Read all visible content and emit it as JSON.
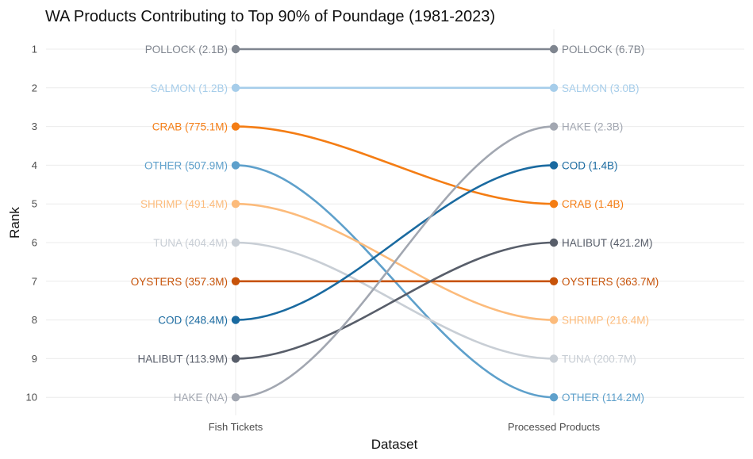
{
  "chart_data": {
    "type": "bump",
    "title": "WA Products Contributing to Top 90% of Poundage (1981-2023)",
    "xlabel": "Dataset",
    "ylabel": "Rank",
    "categories": [
      "Fish Tickets",
      "Processed Products"
    ],
    "ranks": [
      1,
      2,
      3,
      4,
      5,
      6,
      7,
      8,
      9,
      10
    ],
    "grid": true,
    "series": [
      {
        "name": "POLLOCK",
        "color": "#7f858f",
        "values": [
          1,
          1
        ],
        "labels": [
          "POLLOCK (2.1B)",
          "POLLOCK (6.7B)"
        ]
      },
      {
        "name": "SALMON",
        "color": "#a6cdea",
        "values": [
          2,
          2
        ],
        "labels": [
          "SALMON (1.2B)",
          "SALMON (3.0B)"
        ]
      },
      {
        "name": "CRAB",
        "color": "#f47d14",
        "values": [
          3,
          5
        ],
        "labels": [
          "CRAB (775.1M)",
          "CRAB (1.4B)"
        ]
      },
      {
        "name": "OTHER",
        "color": "#5ea0cb",
        "values": [
          4,
          10
        ],
        "labels": [
          "OTHER (507.9M)",
          "OTHER (114.2M)"
        ]
      },
      {
        "name": "SHRIMP",
        "color": "#fcbb7b",
        "values": [
          5,
          8
        ],
        "labels": [
          "SHRIMP (491.4M)",
          "SHRIMP (216.4M)"
        ]
      },
      {
        "name": "TUNA",
        "color": "#c8ced5",
        "values": [
          6,
          9
        ],
        "labels": [
          "TUNA (404.4M)",
          "TUNA (200.7M)"
        ]
      },
      {
        "name": "OYSTERS",
        "color": "#c75309",
        "values": [
          7,
          7
        ],
        "labels": [
          "OYSTERS (357.3M)",
          "OYSTERS (363.7M)"
        ]
      },
      {
        "name": "COD",
        "color": "#1a6aa0",
        "values": [
          8,
          4
        ],
        "labels": [
          "COD (248.4M)",
          "COD (1.4B)"
        ]
      },
      {
        "name": "HALIBUT",
        "color": "#585e6a",
        "values": [
          9,
          6
        ],
        "labels": [
          "HALIBUT (113.9M)",
          "HALIBUT (421.2M)"
        ]
      },
      {
        "name": "HAKE",
        "color": "#a2a7b1",
        "values": [
          10,
          3
        ],
        "labels": [
          "HAKE (NA)",
          "HAKE (2.3B)"
        ]
      }
    ]
  }
}
